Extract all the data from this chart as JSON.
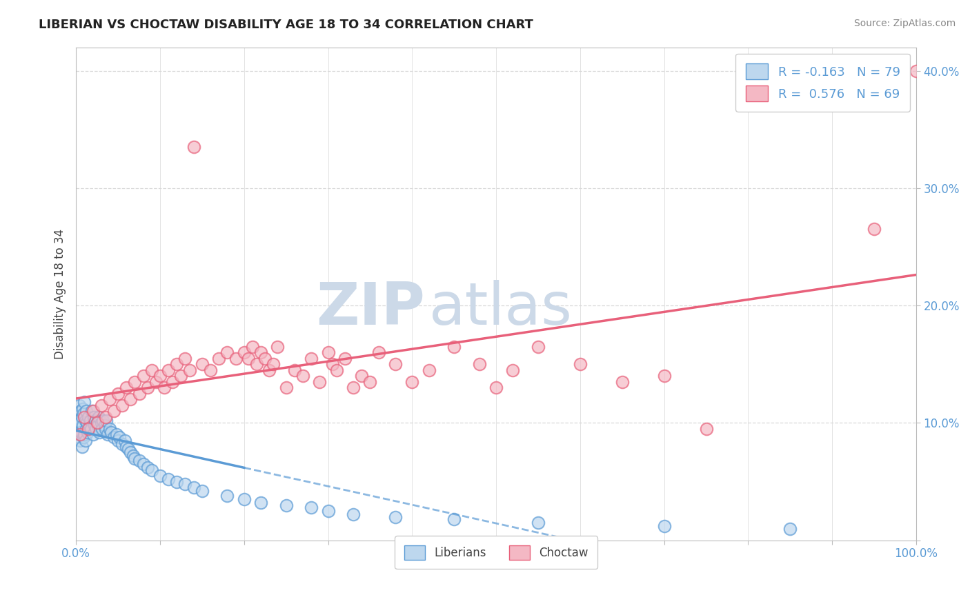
{
  "title": "LIBERIAN VS CHOCTAW DISABILITY AGE 18 TO 34 CORRELATION CHART",
  "source_text": "Source: ZipAtlas.com",
  "ylabel": "Disability Age 18 to 34",
  "xlim": [
    0,
    100
  ],
  "ylim": [
    0,
    42
  ],
  "blue_color": "#5b9bd5",
  "blue_fill": "#bdd7ee",
  "pink_color": "#e8607a",
  "pink_fill": "#f4b8c4",
  "r_blue": -0.163,
  "n_blue": 79,
  "r_pink": 0.576,
  "n_pink": 69,
  "watermark_ZIP": "ZIP",
  "watermark_atlas": "atlas",
  "watermark_color": "#ccd9e8",
  "background_color": "#ffffff",
  "grid_color": "#d8d8d8",
  "blue_scatter_x": [
    0.2,
    0.3,
    0.3,
    0.4,
    0.4,
    0.5,
    0.5,
    0.6,
    0.6,
    0.7,
    0.7,
    0.8,
    0.8,
    0.9,
    0.9,
    1.0,
    1.0,
    1.1,
    1.1,
    1.2,
    1.2,
    1.3,
    1.4,
    1.5,
    1.6,
    1.7,
    1.8,
    1.9,
    2.0,
    2.1,
    2.2,
    2.3,
    2.4,
    2.5,
    2.6,
    2.7,
    2.8,
    3.0,
    3.1,
    3.2,
    3.4,
    3.5,
    3.6,
    3.8,
    4.0,
    4.2,
    4.5,
    4.8,
    5.0,
    5.2,
    5.5,
    5.8,
    6.0,
    6.2,
    6.5,
    6.8,
    7.0,
    7.5,
    8.0,
    8.5,
    9.0,
    10.0,
    11.0,
    12.0,
    13.0,
    14.0,
    15.0,
    18.0,
    20.0,
    22.0,
    25.0,
    28.0,
    30.0,
    33.0,
    38.0,
    45.0,
    55.0,
    70.0,
    85.0
  ],
  "blue_scatter_y": [
    9.5,
    8.8,
    10.2,
    9.0,
    11.5,
    8.5,
    10.0,
    9.2,
    11.0,
    8.0,
    10.5,
    9.8,
    11.2,
    8.8,
    10.8,
    9.0,
    11.8,
    8.5,
    10.2,
    9.5,
    11.0,
    10.0,
    9.2,
    10.5,
    9.8,
    10.2,
    9.5,
    11.0,
    9.0,
    10.5,
    9.8,
    10.2,
    9.5,
    10.0,
    9.8,
    10.5,
    9.2,
    10.0,
    9.5,
    10.2,
    9.8,
    9.5,
    10.2,
    9.0,
    9.5,
    9.2,
    8.8,
    9.0,
    8.5,
    8.8,
    8.2,
    8.5,
    8.0,
    7.8,
    7.5,
    7.2,
    7.0,
    6.8,
    6.5,
    6.2,
    6.0,
    5.5,
    5.2,
    5.0,
    4.8,
    4.5,
    4.2,
    3.8,
    3.5,
    3.2,
    3.0,
    2.8,
    2.5,
    2.2,
    2.0,
    1.8,
    1.5,
    1.2,
    1.0
  ],
  "pink_scatter_x": [
    0.5,
    1.0,
    1.5,
    2.0,
    2.5,
    3.0,
    3.5,
    4.0,
    4.5,
    5.0,
    5.5,
    6.0,
    6.5,
    7.0,
    7.5,
    8.0,
    8.5,
    9.0,
    9.5,
    10.0,
    10.5,
    11.0,
    11.5,
    12.0,
    12.5,
    13.0,
    13.5,
    14.0,
    15.0,
    16.0,
    17.0,
    18.0,
    19.0,
    20.0,
    20.5,
    21.0,
    21.5,
    22.0,
    22.5,
    23.0,
    23.5,
    24.0,
    25.0,
    26.0,
    27.0,
    28.0,
    29.0,
    30.0,
    30.5,
    31.0,
    32.0,
    33.0,
    34.0,
    35.0,
    36.0,
    38.0,
    40.0,
    42.0,
    45.0,
    48.0,
    50.0,
    52.0,
    55.0,
    60.0,
    65.0,
    70.0,
    75.0,
    95.0,
    100.0
  ],
  "pink_scatter_y": [
    9.0,
    10.5,
    9.5,
    11.0,
    10.0,
    11.5,
    10.5,
    12.0,
    11.0,
    12.5,
    11.5,
    13.0,
    12.0,
    13.5,
    12.5,
    14.0,
    13.0,
    14.5,
    13.5,
    14.0,
    13.0,
    14.5,
    13.5,
    15.0,
    14.0,
    15.5,
    14.5,
    33.5,
    15.0,
    14.5,
    15.5,
    16.0,
    15.5,
    16.0,
    15.5,
    16.5,
    15.0,
    16.0,
    15.5,
    14.5,
    15.0,
    16.5,
    13.0,
    14.5,
    14.0,
    15.5,
    13.5,
    16.0,
    15.0,
    14.5,
    15.5,
    13.0,
    14.0,
    13.5,
    16.0,
    15.0,
    13.5,
    14.5,
    16.5,
    15.0,
    13.0,
    14.5,
    16.5,
    15.0,
    13.5,
    14.0,
    9.5,
    26.5,
    40.0
  ]
}
